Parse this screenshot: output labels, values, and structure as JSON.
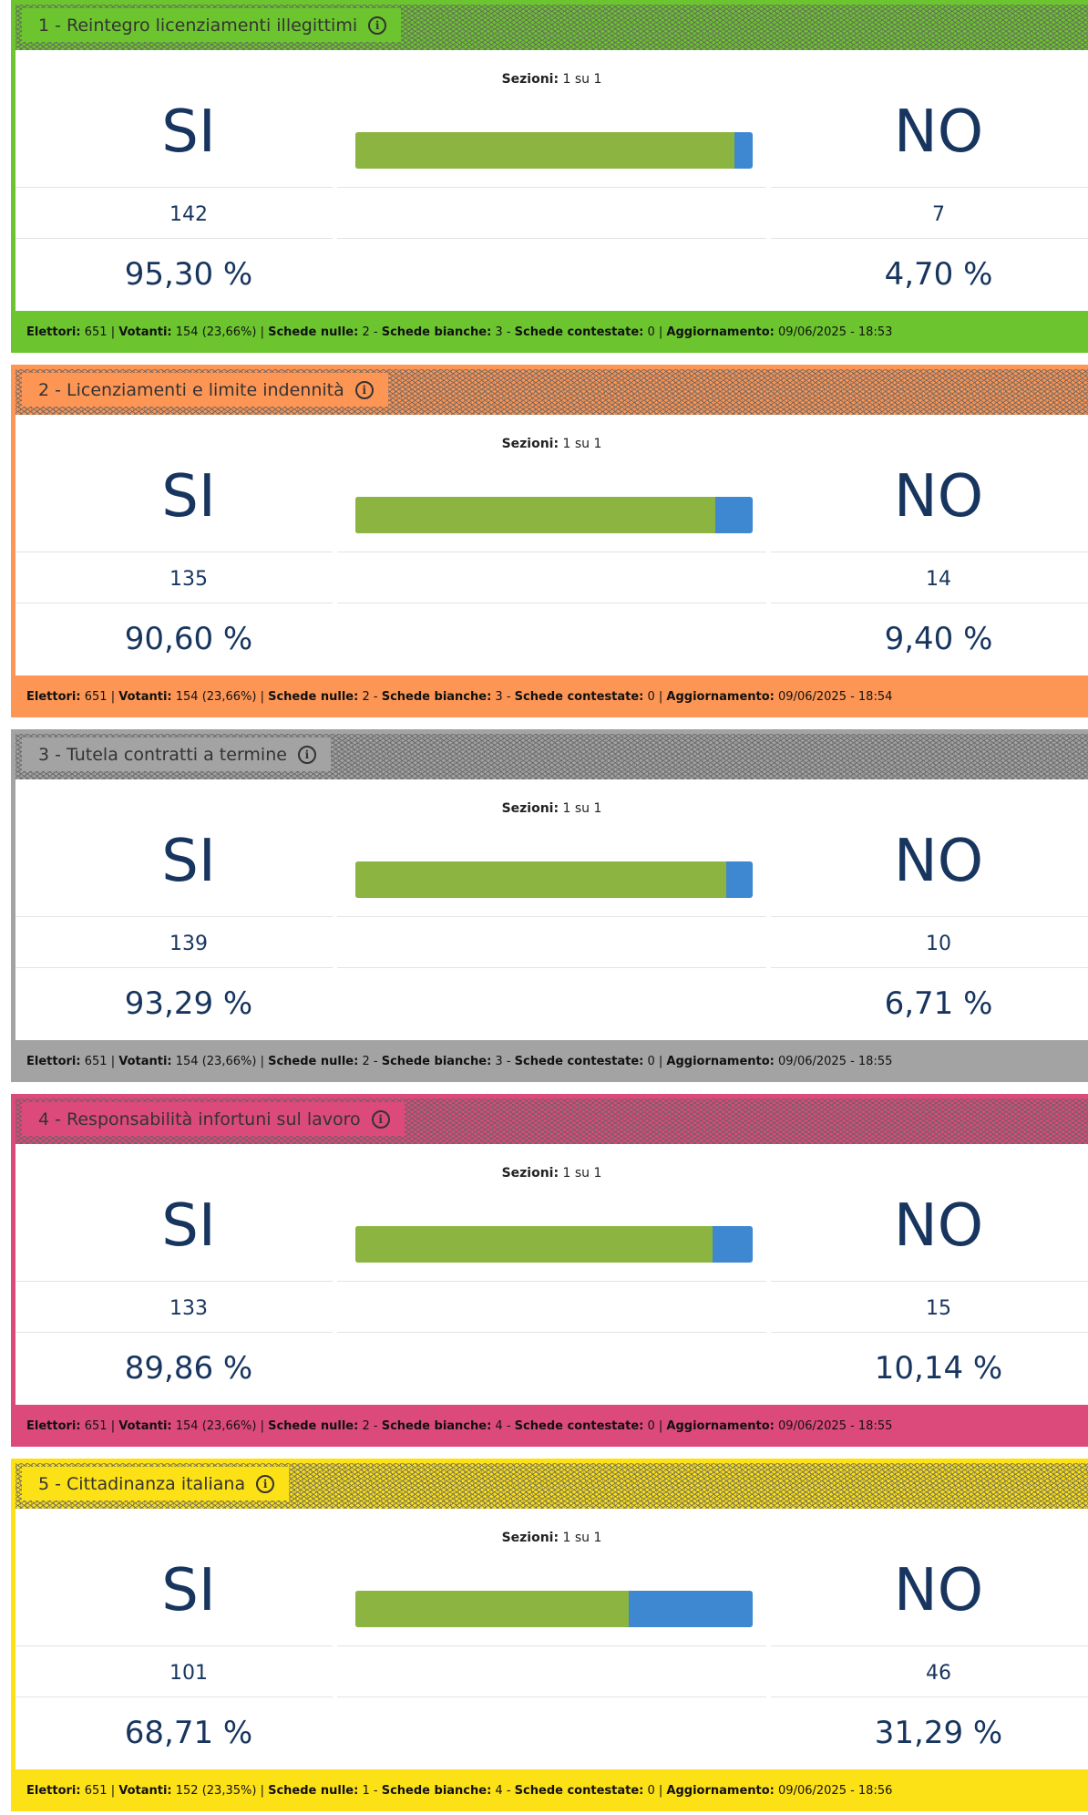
{
  "referenda": [
    {
      "title": "1 - Reintegro licenziamenti illegittimi",
      "color": "#6cc52e",
      "sezioni_label": "Sezioni:",
      "sezioni_value": "1 su 1",
      "yes_label": "SI",
      "no_label": "NO",
      "yes_votes": "142",
      "no_votes": "7",
      "yes_pct": "95,30 %",
      "no_pct": "4,70 %",
      "yes_share": 0.953,
      "footer": {
        "elettori_label": "Elettori:",
        "elettori": "651",
        "votanti_label": "Votanti:",
        "votanti": "154 (23,66%)",
        "nulle_label": "Schede nulle:",
        "nulle": "2",
        "bianche_label": "Schede bianche:",
        "bianche": "3",
        "contestate_label": "Schede contestate:",
        "contestate": "0",
        "aggiornamento_label": "Aggiornamento:",
        "aggiornamento": "09/06/2025 - 18:53"
      }
    },
    {
      "title": "2 - Licenziamenti e limite indennità",
      "color": "#fd9655",
      "sezioni_label": "Sezioni:",
      "sezioni_value": "1 su 1",
      "yes_label": "SI",
      "no_label": "NO",
      "yes_votes": "135",
      "no_votes": "14",
      "yes_pct": "90,60 %",
      "no_pct": "9,40 %",
      "yes_share": 0.906,
      "footer": {
        "elettori_label": "Elettori:",
        "elettori": "651",
        "votanti_label": "Votanti:",
        "votanti": "154 (23,66%)",
        "nulle_label": "Schede nulle:",
        "nulle": "2",
        "bianche_label": "Schede bianche:",
        "bianche": "3",
        "contestate_label": "Schede contestate:",
        "contestate": "0",
        "aggiornamento_label": "Aggiornamento:",
        "aggiornamento": "09/06/2025 - 18:54"
      }
    },
    {
      "title": "3 - Tutela contratti a termine",
      "color": "#a3a3a3",
      "sezioni_label": "Sezioni:",
      "sezioni_value": "1 su 1",
      "yes_label": "SI",
      "no_label": "NO",
      "yes_votes": "139",
      "no_votes": "10",
      "yes_pct": "93,29 %",
      "no_pct": "6,71 %",
      "yes_share": 0.9329,
      "footer": {
        "elettori_label": "Elettori:",
        "elettori": "651",
        "votanti_label": "Votanti:",
        "votanti": "154 (23,66%)",
        "nulle_label": "Schede nulle:",
        "nulle": "2",
        "bianche_label": "Schede bianche:",
        "bianche": "3",
        "contestate_label": "Schede contestate:",
        "contestate": "0",
        "aggiornamento_label": "Aggiornamento:",
        "aggiornamento": "09/06/2025 - 18:55"
      }
    },
    {
      "title": "4 - Responsabilità infortuni sul lavoro",
      "color": "#dc4a7c",
      "sezioni_label": "Sezioni:",
      "sezioni_value": "1 su 1",
      "yes_label": "SI",
      "no_label": "NO",
      "yes_votes": "133",
      "no_votes": "15",
      "yes_pct": "89,86 %",
      "no_pct": "10,14 %",
      "yes_share": 0.8986,
      "footer": {
        "elettori_label": "Elettori:",
        "elettori": "651",
        "votanti_label": "Votanti:",
        "votanti": "154 (23,66%)",
        "nulle_label": "Schede nulle:",
        "nulle": "2",
        "bianche_label": "Schede bianche:",
        "bianche": "4",
        "contestate_label": "Schede contestate:",
        "contestate": "0",
        "aggiornamento_label": "Aggiornamento:",
        "aggiornamento": "09/06/2025 - 18:55"
      }
    },
    {
      "title": "5 - Cittadinanza italiana",
      "color": "#fde117",
      "sezioni_label": "Sezioni:",
      "sezioni_value": "1 su 1",
      "yes_label": "SI",
      "no_label": "NO",
      "yes_votes": "101",
      "no_votes": "46",
      "yes_pct": "68,71 %",
      "no_pct": "31,29 %",
      "yes_share": 0.6871,
      "footer": {
        "elettori_label": "Elettori:",
        "elettori": "651",
        "votanti_label": "Votanti:",
        "votanti": "152 (23,35%)",
        "nulle_label": "Schede nulle:",
        "nulle": "1",
        "bianche_label": "Schede bianche:",
        "bianche": "4",
        "contestate_label": "Schede contestate:",
        "contestate": "0",
        "aggiornamento_label": "Aggiornamento:",
        "aggiornamento": "09/06/2025 - 18:56"
      }
    }
  ],
  "bar_colors": {
    "yes": "#8bb540",
    "no": "#3e87d1"
  },
  "info_icon": "info-circle-icon"
}
